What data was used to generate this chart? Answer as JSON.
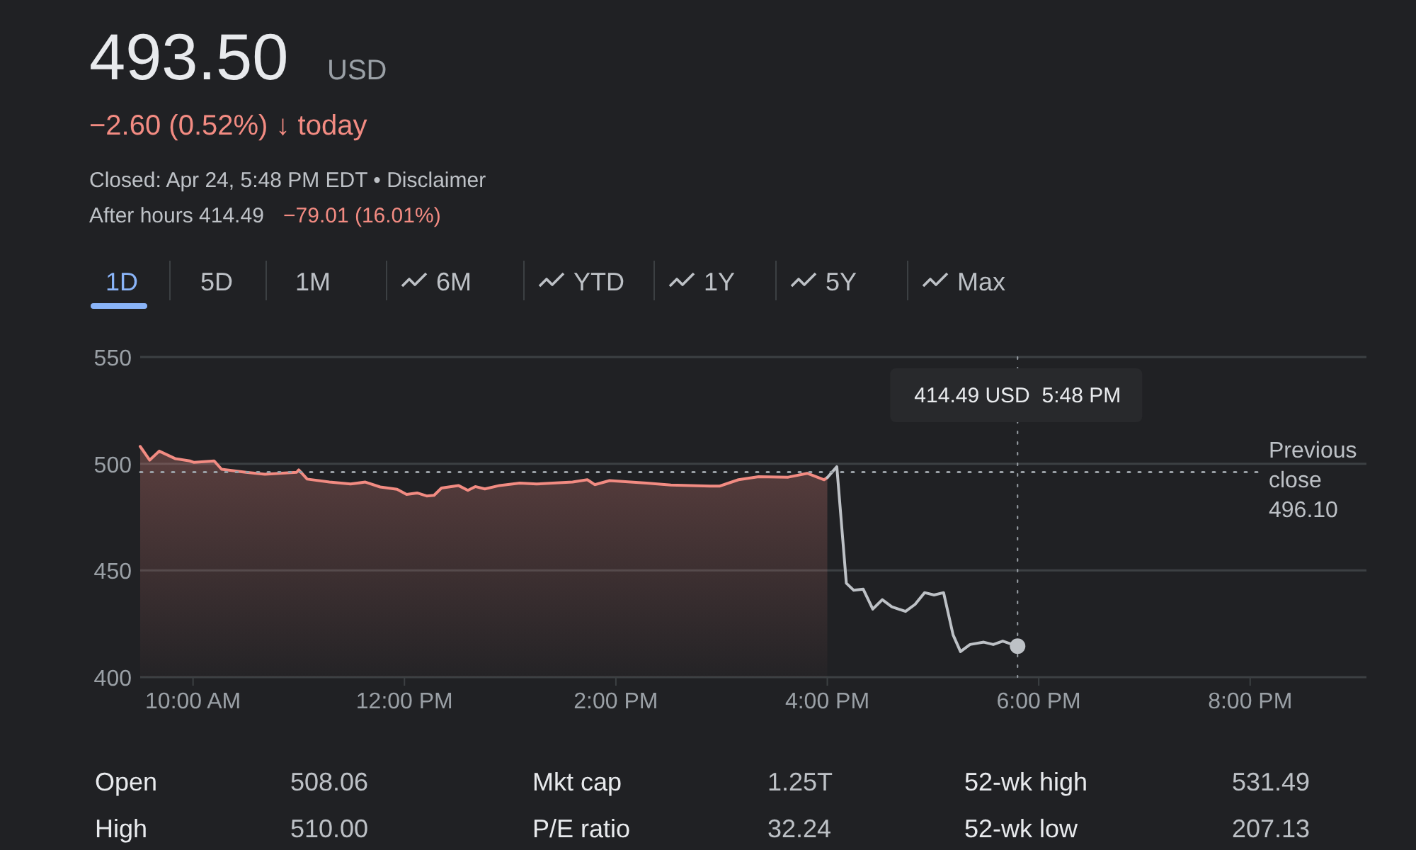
{
  "chart_data": {
    "type": "line",
    "title": "493.50",
    "subtitle": "USD",
    "annotations": [
      "−2.60 (0.52%) ↓ today",
      "Closed: Apr 24, 5:48 PM EDT • Disclaimer",
      "After hours 414.49",
      "−79.01 (16.01%)",
      "1D",
      "5D",
      "1M",
      "6M",
      "YTD",
      "1Y",
      "5Y",
      "Max",
      "Open",
      "508.06",
      "Mkt cap",
      "1.25T",
      "52-wk high",
      "531.49",
      "High",
      "510.00",
      "P/E ratio",
      "32.24",
      "52-wk low",
      "207.13",
      "414.49 USD  5:48 PM"
    ],
    "xlim": [
      9.5,
      21.1
    ],
    "ylim": [
      400,
      550
    ],
    "xticks": [
      {
        "value": 10,
        "label": "10:00 AM"
      },
      {
        "value": 12,
        "label": "12:00 PM"
      },
      {
        "value": 14,
        "label": "2:00 PM"
      },
      {
        "value": 16,
        "label": "4:00 PM"
      },
      {
        "value": 18,
        "label": "6:00 PM"
      },
      {
        "value": 20,
        "label": "8:00 PM"
      }
    ],
    "yticks": [
      400,
      450,
      500,
      550
    ],
    "grid": "y",
    "ref_lines": [
      {
        "axis": "y",
        "value": 496.1,
        "label": "Previous close 496.10",
        "line_style": "dotted",
        "color": "#9aa0a6"
      },
      {
        "axis": "x",
        "value": 17.8,
        "line_style": "dotted",
        "color": "#9aa0a6"
      }
    ],
    "series": [
      {
        "type": "area",
        "color": "#f28b82",
        "x": [
          9.5,
          9.59,
          9.68,
          9.83,
          9.97,
          10.01,
          10.2,
          10.27,
          10.5,
          10.68,
          10.98,
          11.0,
          11.08,
          11.29,
          11.49,
          11.63,
          11.77,
          11.93,
          12.02,
          12.12,
          12.21,
          12.28,
          12.35,
          12.51,
          12.6,
          12.67,
          12.76,
          12.9,
          13.09,
          13.25,
          13.59,
          13.73,
          13.8,
          13.94,
          14.29,
          14.52,
          14.89,
          14.98,
          15.16,
          15.35,
          15.63,
          15.81,
          15.97,
          16.0
        ],
        "values": [
          508.1,
          501.7,
          505.9,
          502.4,
          501.3,
          500.6,
          501.3,
          497.4,
          496,
          495.1,
          496,
          497.1,
          492.8,
          491.4,
          490.5,
          491.4,
          489.1,
          488,
          485.6,
          486.3,
          484.9,
          485.2,
          488.6,
          489.8,
          487.5,
          489.3,
          488.2,
          489.8,
          490.9,
          490.5,
          491.4,
          492.5,
          490.2,
          492.1,
          490.9,
          490,
          489.5,
          489.5,
          492.5,
          493.9,
          493.7,
          495.5,
          492.5,
          493.5
        ]
      },
      {
        "color": "#bdc1c6",
        "x": [
          16.0,
          16.09,
          16.18,
          16.25,
          16.34,
          16.43,
          16.52,
          16.61,
          16.74,
          16.83,
          16.92,
          17.01,
          17.1,
          17.19,
          17.26,
          17.35,
          17.48,
          17.57,
          17.66,
          17.8
        ],
        "values": [
          493.5,
          498.6,
          444,
          440.7,
          441.2,
          431.9,
          436.3,
          433,
          430.8,
          434.1,
          439.6,
          438.5,
          439.6,
          419.8,
          412,
          415.3,
          416.4,
          415.3,
          416.9,
          414.5
        ]
      }
    ]
  }
}
